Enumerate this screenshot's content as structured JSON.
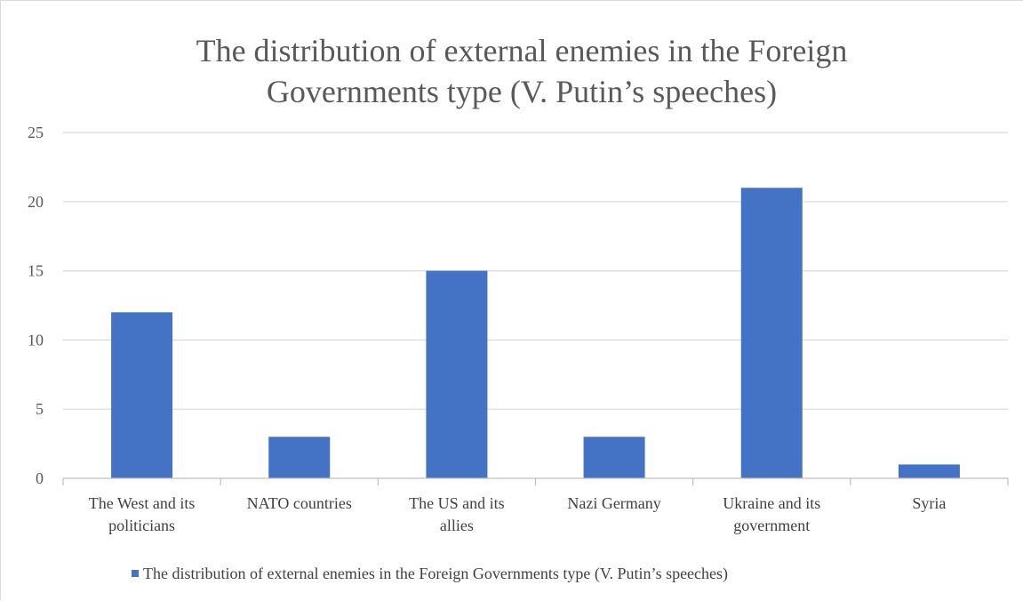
{
  "chart_data": {
    "type": "bar",
    "title_lines": [
      "The distribution of external enemies in the Foreign",
      "Governments type (V. Putin’s speeches)"
    ],
    "categories": [
      [
        "The West and its",
        "politicians"
      ],
      [
        "NATO countries"
      ],
      [
        "The US and its",
        "allies"
      ],
      [
        "Nazi Germany"
      ],
      [
        "Ukraine and its",
        "government"
      ],
      [
        "Syria"
      ]
    ],
    "series": [
      {
        "name": "The distribution of external enemies in the Foreign Governments type (V. Putin’s speeches)",
        "values": [
          12,
          3,
          15,
          3,
          21,
          1
        ],
        "color": "#4472c4"
      }
    ],
    "ylim": [
      0,
      25
    ],
    "yticks": [
      0,
      5,
      10,
      15,
      20,
      25
    ],
    "grid": true,
    "legend_position": "bottom",
    "colors": {
      "grid": "#d9d9d9",
      "axis": "#bfbfbf"
    }
  }
}
